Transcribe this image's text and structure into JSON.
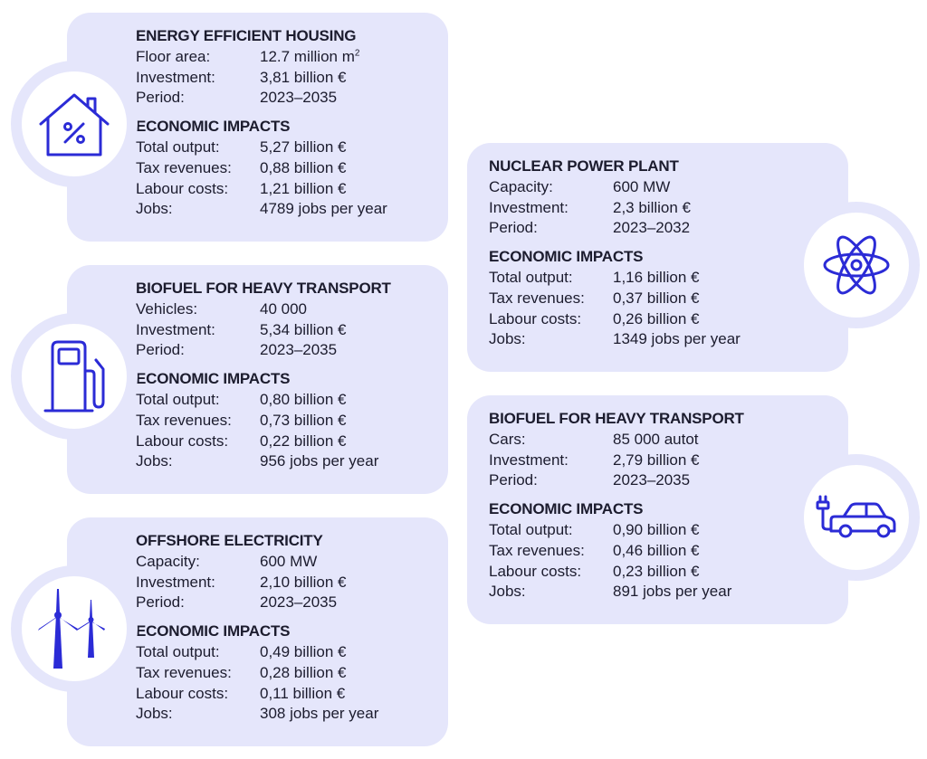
{
  "accent_color": "#2b2bd6",
  "card_color": "#e5e6fb",
  "cards": [
    {
      "title": "ENERGY EFFICIENT HOUSING",
      "icon": "house-percent-icon",
      "rows": [
        {
          "label": "Floor area:",
          "value": "12.7 million m",
          "sup": "2"
        },
        {
          "label": "Investment:",
          "value": "3,81 billion €"
        },
        {
          "label": "Period:",
          "value": "2023–2035"
        }
      ],
      "impacts_title": "ECONOMIC IMPACTS",
      "impacts": [
        {
          "label": "Total output:",
          "value": "5,27 billion €"
        },
        {
          "label": "Tax revenues:",
          "value": "0,88 billion €"
        },
        {
          "label": "Labour costs:",
          "value": "1,21 billion €"
        },
        {
          "label": "Jobs:",
          "value": "4789 jobs per year"
        }
      ]
    },
    {
      "title": "BIOFUEL FOR HEAVY TRANSPORT",
      "icon": "fuel-pump-icon",
      "rows": [
        {
          "label": "Vehicles:",
          "value": "40 000"
        },
        {
          "label": "Investment:",
          "value": "5,34 billion €"
        },
        {
          "label": "Period:",
          "value": "2023–2035"
        }
      ],
      "impacts_title": "ECONOMIC IMPACTS",
      "impacts": [
        {
          "label": "Total output:",
          "value": "0,80 billion €"
        },
        {
          "label": "Tax revenues:",
          "value": "0,73 billion €"
        },
        {
          "label": "Labour costs:",
          "value": "0,22 billion €"
        },
        {
          "label": "Jobs:",
          "value": "956 jobs per year"
        }
      ]
    },
    {
      "title": "OFFSHORE ELECTRICITY",
      "icon": "wind-turbine-icon",
      "rows": [
        {
          "label": "Capacity:",
          "value": "600 MW"
        },
        {
          "label": "Investment:",
          "value": "2,10 billion €"
        },
        {
          "label": "Period:",
          "value": "2023–2035"
        }
      ],
      "impacts_title": "ECONOMIC IMPACTS",
      "impacts": [
        {
          "label": "Total output:",
          "value": "0,49 billion €"
        },
        {
          "label": "Tax revenues:",
          "value": "0,28 billion €"
        },
        {
          "label": "Labour costs:",
          "value": "0,11 billion €"
        },
        {
          "label": "Jobs:",
          "value": "308 jobs per year"
        }
      ]
    },
    {
      "title": "NUCLEAR POWER PLANT",
      "icon": "atom-icon",
      "rows": [
        {
          "label": "Capacity:",
          "value": "600 MW"
        },
        {
          "label": "Investment:",
          "value": "2,3 billion €"
        },
        {
          "label": "Period:",
          "value": "2023–2032"
        }
      ],
      "impacts_title": "ECONOMIC IMPACTS",
      "impacts": [
        {
          "label": "Total output:",
          "value": "1,16 billion €"
        },
        {
          "label": "Tax revenues:",
          "value": "0,37 billion €"
        },
        {
          "label": "Labour costs:",
          "value": "0,26 billion €"
        },
        {
          "label": "Jobs:",
          "value": "1349 jobs per year"
        }
      ]
    },
    {
      "title": "BIOFUEL FOR HEAVY TRANSPORT",
      "icon": "electric-car-icon",
      "rows": [
        {
          "label": "Cars:",
          "value": "85 000 autot"
        },
        {
          "label": "Investment:",
          "value": "2,79 billion €"
        },
        {
          "label": "Period:",
          "value": "2023–2035"
        }
      ],
      "impacts_title": "ECONOMIC IMPACTS",
      "impacts": [
        {
          "label": "Total output:",
          "value": "0,90 billion €"
        },
        {
          "label": "Tax revenues:",
          "value": "0,46 billion €"
        },
        {
          "label": "Labour costs:",
          "value": "0,23 billion €"
        },
        {
          "label": "Jobs:",
          "value": "891 jobs per year"
        }
      ]
    }
  ]
}
